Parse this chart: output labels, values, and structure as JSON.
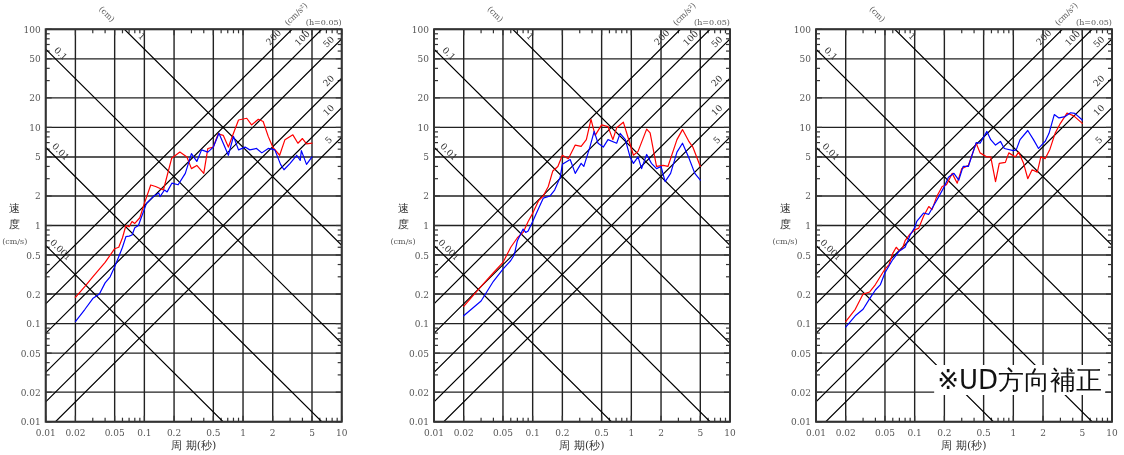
{
  "chart_data": [
    {
      "type": "line",
      "xlabel": "周 期(秒)",
      "ylabel": "速度(cm/s)",
      "log": "xy",
      "grid": true,
      "xlim": [
        0.01,
        10
      ],
      "ylim": [
        0.01,
        100
      ],
      "xticks": [
        0.01,
        0.02,
        {
          "value": 0.03,
          "label": null
        },
        {
          "value": 0.04,
          "label": null
        },
        0.05,
        {
          "value": 0.06,
          "label": null
        },
        {
          "value": 0.07,
          "label": null
        },
        {
          "value": 0.08,
          "label": null
        },
        {
          "value": 0.09,
          "label": null
        },
        0.1,
        0.2,
        {
          "value": 0.3,
          "label": null
        },
        {
          "value": 0.4,
          "label": null
        },
        0.5,
        {
          "value": 0.6,
          "label": null
        },
        {
          "value": 0.7,
          "label": null
        },
        {
          "value": 0.8,
          "label": null
        },
        {
          "value": 0.9,
          "label": null
        },
        1,
        2,
        {
          "value": 3,
          "label": null
        },
        {
          "value": 4,
          "label": null
        },
        5,
        {
          "value": 6,
          "label": null
        },
        {
          "value": 7,
          "label": null
        },
        {
          "value": 8,
          "label": null
        },
        {
          "value": 9,
          "label": null
        },
        10
      ],
      "yticks": [
        0.01,
        0.02,
        {
          "value": 0.03,
          "label": null
        },
        {
          "value": 0.04,
          "label": null
        },
        0.05,
        {
          "value": 0.06,
          "label": null
        },
        {
          "value": 0.07,
          "label": null
        },
        {
          "value": 0.08,
          "label": null
        },
        {
          "value": 0.09,
          "label": null
        },
        0.1,
        0.2,
        {
          "value": 0.3,
          "label": null
        },
        {
          "value": 0.4,
          "label": null
        },
        0.5,
        {
          "value": 0.6,
          "label": null
        },
        {
          "value": 0.7,
          "label": null
        },
        {
          "value": 0.8,
          "label": null
        },
        {
          "value": 0.9,
          "label": null
        },
        1,
        2,
        {
          "value": 3,
          "label": null
        },
        {
          "value": 4,
          "label": null
        },
        5,
        {
          "value": 6,
          "label": null
        },
        {
          "value": 7,
          "label": null
        },
        {
          "value": 8,
          "label": null
        },
        {
          "value": 9,
          "label": null
        },
        10,
        20,
        {
          "value": 30,
          "label": null
        },
        {
          "value": 40,
          "label": null
        },
        50,
        {
          "value": 60,
          "label": null
        },
        {
          "value": 70,
          "label": null
        },
        {
          "value": 80,
          "label": null
        },
        {
          "value": 90,
          "label": null
        },
        100
      ],
      "series": [
        {
          "color": "#000000",
          "x": [
            0.01,
            0.628
          ],
          "values": [
            0.628,
            0.01
          ]
        },
        {
          "color": "#000000",
          "x": [
            0.01,
            6.28
          ],
          "values": [
            6.28,
            0.01
          ]
        },
        {
          "color": "#000000",
          "x": [
            0.01,
            10
          ],
          "values": [
            62.8,
            0.0628
          ]
        },
        {
          "color": "#000000",
          "x": [
            0.0628,
            10
          ],
          "values": [
            100,
            0.628
          ]
        },
        {
          "color": "#000000",
          "x": [
            0.01257,
            10
          ],
          "values": [
            0.01,
            7.96
          ]
        },
        {
          "color": "#000000",
          "x": [
            0.01,
            10
          ],
          "values": [
            0.0159,
            15.9
          ]
        },
        {
          "color": "#000000",
          "x": [
            0.01,
            10
          ],
          "values": [
            0.0318,
            31.8
          ]
        },
        {
          "color": "#000000",
          "x": [
            0.01,
            10
          ],
          "values": [
            0.0796,
            79.6
          ]
        },
        {
          "color": "#000000",
          "x": [
            0.01,
            6.28
          ],
          "values": [
            0.159,
            100
          ]
        },
        {
          "color": "#000000",
          "x": [
            0.01,
            3.14
          ],
          "values": [
            0.318,
            100
          ]
        },
        {
          "color": "#ff0000",
          "x": [
            0.02,
            0.025,
            0.03,
            0.04,
            0.05,
            0.055,
            0.06,
            0.065,
            0.07,
            0.075,
            0.08,
            0.09,
            0.1,
            0.116,
            0.13,
            0.156,
            0.189,
            0.229,
            0.27,
            0.3,
            0.34,
            0.4,
            0.44,
            0.5,
            0.56,
            0.63,
            0.71,
            0.8,
            0.9,
            1.09,
            1.22,
            1.43,
            1.6,
            1.8,
            2.0,
            2.35,
            2.66,
            3.2,
            3.6,
            4.0,
            4.4,
            5.0
          ],
          "values": [
            0.185,
            0.24,
            0.3,
            0.42,
            0.58,
            0.6,
            0.75,
            1.0,
            0.97,
            1.1,
            1.05,
            1.2,
            1.68,
            2.59,
            2.5,
            2.3,
            4.84,
            5.6,
            5.0,
            3.8,
            4.1,
            3.4,
            6.1,
            6.3,
            8.6,
            8.3,
            6.3,
            8.7,
            11.9,
            12.4,
            10.6,
            12.1,
            11.5,
            8.1,
            6.3,
            5.2,
            7.5,
            8.4,
            6.9,
            7.7,
            6.8,
            6.9
          ]
        },
        {
          "color": "#0000ff",
          "x": [
            0.02,
            0.025,
            0.03,
            0.035,
            0.04,
            0.045,
            0.05,
            0.055,
            0.06,
            0.065,
            0.07,
            0.075,
            0.08,
            0.087,
            0.105,
            0.123,
            0.14,
            0.144,
            0.16,
            0.17,
            0.19,
            0.22,
            0.26,
            0.3,
            0.34,
            0.38,
            0.44,
            0.5,
            0.57,
            0.63,
            0.71,
            0.8,
            0.9,
            1.05,
            1.17,
            1.37,
            1.55,
            1.8,
            2.1,
            2.4,
            2.6,
            3.0,
            3.5,
            3.8,
            3.9,
            4.4,
            5.0
          ],
          "values": [
            0.105,
            0.14,
            0.18,
            0.2,
            0.26,
            0.3,
            0.38,
            0.48,
            0.6,
            0.77,
            0.78,
            0.8,
            0.95,
            1.0,
            1.68,
            1.97,
            2.15,
            1.97,
            2.3,
            2.2,
            2.7,
            2.6,
            3.4,
            5.4,
            4.5,
            5.9,
            5.6,
            6.3,
            8.7,
            6.9,
            5.2,
            8.1,
            5.9,
            6.3,
            5.9,
            6.1,
            5.5,
            6.1,
            5.9,
            4.2,
            3.7,
            4.3,
            5.2,
            4.6,
            5.8,
            4.2,
            5.0
          ]
        }
      ],
      "annotations": [
        "(cm)",
        "(cm/s²)",
        "(h=0.05)",
        {
          "text": "0.1",
          "x": 0.012,
          "y": 52.4
        },
        {
          "text": "0.01",
          "x": 0.012,
          "y": 5.24
        },
        {
          "text": "0.001",
          "x": 0.012,
          "y": 0.524
        },
        {
          "text": "1",
          "x": 0.08,
          "y": 78.5
        },
        {
          "text": "200",
          "x": 2.3,
          "y": 73.2
        },
        {
          "text": "100",
          "x": 4.5,
          "y": 71.6
        },
        {
          "text": "50",
          "x": 8.3,
          "y": 66.1
        },
        {
          "text": "20",
          "x": 8.3,
          "y": 26.4
        },
        {
          "text": "10",
          "x": 8.3,
          "y": 13.2
        },
        {
          "text": "5",
          "x": 8.3,
          "y": 6.6
        }
      ]
    },
    {
      "type": "line",
      "xlabel": "周 期(秒)",
      "ylabel": "速度(cm/s)",
      "log": "xy",
      "grid": true,
      "xlim": [
        0.01,
        10
      ],
      "ylim": [
        0.01,
        100
      ],
      "xticks": [
        0.01,
        0.02,
        {
          "value": 0.03,
          "label": null
        },
        {
          "value": 0.04,
          "label": null
        },
        0.05,
        {
          "value": 0.06,
          "label": null
        },
        {
          "value": 0.07,
          "label": null
        },
        {
          "value": 0.08,
          "label": null
        },
        {
          "value": 0.09,
          "label": null
        },
        0.1,
        0.2,
        {
          "value": 0.3,
          "label": null
        },
        {
          "value": 0.4,
          "label": null
        },
        0.5,
        {
          "value": 0.6,
          "label": null
        },
        {
          "value": 0.7,
          "label": null
        },
        {
          "value": 0.8,
          "label": null
        },
        {
          "value": 0.9,
          "label": null
        },
        1,
        2,
        {
          "value": 3,
          "label": null
        },
        {
          "value": 4,
          "label": null
        },
        5,
        {
          "value": 6,
          "label": null
        },
        {
          "value": 7,
          "label": null
        },
        {
          "value": 8,
          "label": null
        },
        {
          "value": 9,
          "label": null
        },
        10
      ],
      "yticks": [
        0.01,
        0.02,
        {
          "value": 0.03,
          "label": null
        },
        {
          "value": 0.04,
          "label": null
        },
        0.05,
        {
          "value": 0.06,
          "label": null
        },
        {
          "value": 0.07,
          "label": null
        },
        {
          "value": 0.08,
          "label": null
        },
        {
          "value": 0.09,
          "label": null
        },
        0.1,
        0.2,
        {
          "value": 0.3,
          "label": null
        },
        {
          "value": 0.4,
          "label": null
        },
        0.5,
        {
          "value": 0.6,
          "label": null
        },
        {
          "value": 0.7,
          "label": null
        },
        {
          "value": 0.8,
          "label": null
        },
        {
          "value": 0.9,
          "label": null
        },
        1,
        2,
        {
          "value": 3,
          "label": null
        },
        {
          "value": 4,
          "label": null
        },
        5,
        {
          "value": 6,
          "label": null
        },
        {
          "value": 7,
          "label": null
        },
        {
          "value": 8,
          "label": null
        },
        {
          "value": 9,
          "label": null
        },
        10,
        20,
        {
          "value": 30,
          "label": null
        },
        {
          "value": 40,
          "label": null
        },
        50,
        {
          "value": 60,
          "label": null
        },
        {
          "value": 70,
          "label": null
        },
        {
          "value": 80,
          "label": null
        },
        {
          "value": 90,
          "label": null
        },
        100
      ],
      "series": [
        {
          "color": "#000000",
          "x": [
            0.01,
            0.628
          ],
          "values": [
            0.628,
            0.01
          ]
        },
        {
          "color": "#000000",
          "x": [
            0.01,
            6.28
          ],
          "values": [
            6.28,
            0.01
          ]
        },
        {
          "color": "#000000",
          "x": [
            0.01,
            10
          ],
          "values": [
            62.8,
            0.0628
          ]
        },
        {
          "color": "#000000",
          "x": [
            0.0628,
            10
          ],
          "values": [
            100,
            0.628
          ]
        },
        {
          "color": "#000000",
          "x": [
            0.01257,
            10
          ],
          "values": [
            0.01,
            7.96
          ]
        },
        {
          "color": "#000000",
          "x": [
            0.01,
            10
          ],
          "values": [
            0.0159,
            15.9
          ]
        },
        {
          "color": "#000000",
          "x": [
            0.01,
            10
          ],
          "values": [
            0.0318,
            31.8
          ]
        },
        {
          "color": "#000000",
          "x": [
            0.01,
            10
          ],
          "values": [
            0.0796,
            79.6
          ]
        },
        {
          "color": "#000000",
          "x": [
            0.01,
            6.28
          ],
          "values": [
            0.159,
            100
          ]
        },
        {
          "color": "#000000",
          "x": [
            0.01,
            3.14
          ],
          "values": [
            0.318,
            100
          ]
        },
        {
          "color": "#ff0000",
          "x": [
            0.02,
            0.03,
            0.04,
            0.05,
            0.06,
            0.07,
            0.08,
            0.09,
            0.1,
            0.115,
            0.128,
            0.144,
            0.16,
            0.18,
            0.2,
            0.23,
            0.27,
            0.31,
            0.35,
            0.39,
            0.43,
            0.5,
            0.58,
            0.65,
            0.71,
            0.83,
            0.93,
            1.05,
            1.17,
            1.43,
            1.55,
            1.8,
            2.1,
            2.35,
            2.9,
            3.3,
            3.8,
            4.2,
            5.0
          ],
          "values": [
            0.15,
            0.24,
            0.33,
            0.42,
            0.6,
            0.75,
            0.85,
            1.1,
            1.33,
            1.8,
            2.0,
            2.5,
            3.6,
            4.0,
            5.2,
            4.8,
            6.6,
            6.4,
            7.5,
            12.1,
            8.3,
            10.6,
            10.2,
            7.5,
            9.9,
            11.3,
            7.8,
            5.2,
            5.7,
            9.6,
            8.8,
            4.0,
            4.1,
            4.0,
            7.5,
            9.5,
            7.3,
            6.3,
            4.0
          ]
        },
        {
          "color": "#0000ff",
          "x": [
            0.02,
            0.03,
            0.04,
            0.05,
            0.06,
            0.065,
            0.07,
            0.08,
            0.085,
            0.09,
            0.1,
            0.115,
            0.128,
            0.15,
            0.167,
            0.19,
            0.2,
            0.24,
            0.27,
            0.31,
            0.33,
            0.38,
            0.42,
            0.46,
            0.52,
            0.58,
            0.71,
            0.77,
            0.87,
            0.97,
            1.05,
            1.17,
            1.27,
            1.43,
            1.6,
            1.8,
            2.0,
            2.2,
            2.5,
            2.9,
            3.3,
            3.8,
            4.4,
            5.0
          ],
          "values": [
            0.12,
            0.17,
            0.27,
            0.36,
            0.44,
            0.5,
            0.7,
            0.92,
            0.85,
            0.88,
            1.1,
            1.5,
            1.9,
            2.0,
            2.3,
            3.1,
            4.2,
            4.7,
            3.4,
            4.3,
            4.0,
            6.3,
            9.1,
            6.9,
            6.3,
            7.5,
            6.9,
            8.7,
            7.5,
            5.0,
            4.3,
            5.0,
            3.8,
            5.3,
            4.3,
            3.8,
            4.0,
            2.8,
            3.4,
            5.6,
            6.9,
            5.0,
            3.4,
            2.9
          ]
        }
      ],
      "annotations": [
        "(cm)",
        "(cm/s²)",
        "(h=0.05)",
        {
          "text": "0.1",
          "x": 0.012,
          "y": 52.4
        },
        {
          "text": "0.01",
          "x": 0.012,
          "y": 5.24
        },
        {
          "text": "0.001",
          "x": 0.012,
          "y": 0.524
        },
        {
          "text": "1",
          "x": 0.08,
          "y": 78.5
        },
        {
          "text": "200",
          "x": 2.3,
          "y": 73.2
        },
        {
          "text": "100",
          "x": 4.5,
          "y": 71.6
        },
        {
          "text": "50",
          "x": 8.3,
          "y": 66.1
        },
        {
          "text": "20",
          "x": 8.3,
          "y": 26.4
        },
        {
          "text": "10",
          "x": 8.3,
          "y": 13.2
        },
        {
          "text": "5",
          "x": 8.3,
          "y": 6.6
        }
      ]
    },
    {
      "type": "line",
      "xlabel": "周 期(秒)",
      "ylabel": "速度(cm/s)",
      "log": "xy",
      "grid": true,
      "xlim": [
        0.01,
        10
      ],
      "ylim": [
        0.01,
        100
      ],
      "xticks": [
        0.01,
        0.02,
        {
          "value": 0.03,
          "label": null
        },
        {
          "value": 0.04,
          "label": null
        },
        0.05,
        {
          "value": 0.06,
          "label": null
        },
        {
          "value": 0.07,
          "label": null
        },
        {
          "value": 0.08,
          "label": null
        },
        {
          "value": 0.09,
          "label": null
        },
        0.1,
        0.2,
        {
          "value": 0.3,
          "label": null
        },
        {
          "value": 0.4,
          "label": null
        },
        0.5,
        {
          "value": 0.6,
          "label": null
        },
        {
          "value": 0.7,
          "label": null
        },
        {
          "value": 0.8,
          "label": null
        },
        {
          "value": 0.9,
          "label": null
        },
        1,
        2,
        {
          "value": 3,
          "label": null
        },
        {
          "value": 4,
          "label": null
        },
        5,
        {
          "value": 6,
          "label": null
        },
        {
          "value": 7,
          "label": null
        },
        {
          "value": 8,
          "label": null
        },
        {
          "value": 9,
          "label": null
        },
        10
      ],
      "yticks": [
        0.01,
        0.02,
        {
          "value": 0.03,
          "label": null
        },
        {
          "value": 0.04,
          "label": null
        },
        0.05,
        {
          "value": 0.06,
          "label": null
        },
        {
          "value": 0.07,
          "label": null
        },
        {
          "value": 0.08,
          "label": null
        },
        {
          "value": 0.09,
          "label": null
        },
        0.1,
        0.2,
        {
          "value": 0.3,
          "label": null
        },
        {
          "value": 0.4,
          "label": null
        },
        0.5,
        {
          "value": 0.6,
          "label": null
        },
        {
          "value": 0.7,
          "label": null
        },
        {
          "value": 0.8,
          "label": null
        },
        {
          "value": 0.9,
          "label": null
        },
        1,
        2,
        {
          "value": 3,
          "label": null
        },
        {
          "value": 4,
          "label": null
        },
        5,
        {
          "value": 6,
          "label": null
        },
        {
          "value": 7,
          "label": null
        },
        {
          "value": 8,
          "label": null
        },
        {
          "value": 9,
          "label": null
        },
        10,
        20,
        {
          "value": 30,
          "label": null
        },
        {
          "value": 40,
          "label": null
        },
        50,
        {
          "value": 60,
          "label": null
        },
        {
          "value": 70,
          "label": null
        },
        {
          "value": 80,
          "label": null
        },
        {
          "value": 90,
          "label": null
        },
        100
      ],
      "series": [
        {
          "color": "#000000",
          "x": [
            0.01,
            0.628
          ],
          "values": [
            0.628,
            0.01
          ]
        },
        {
          "color": "#000000",
          "x": [
            0.01,
            6.28
          ],
          "values": [
            6.28,
            0.01
          ]
        },
        {
          "color": "#000000",
          "x": [
            0.01,
            10
          ],
          "values": [
            62.8,
            0.0628
          ]
        },
        {
          "color": "#000000",
          "x": [
            0.0628,
            10
          ],
          "values": [
            100,
            0.628
          ]
        },
        {
          "color": "#000000",
          "x": [
            0.01257,
            10
          ],
          "values": [
            0.01,
            7.96
          ]
        },
        {
          "color": "#000000",
          "x": [
            0.01,
            10
          ],
          "values": [
            0.0159,
            15.9
          ]
        },
        {
          "color": "#000000",
          "x": [
            0.01,
            10
          ],
          "values": [
            0.0318,
            31.8
          ]
        },
        {
          "color": "#000000",
          "x": [
            0.01,
            10
          ],
          "values": [
            0.0796,
            79.6
          ]
        },
        {
          "color": "#000000",
          "x": [
            0.01,
            6.28
          ],
          "values": [
            0.159,
            100
          ]
        },
        {
          "color": "#000000",
          "x": [
            0.01,
            3.14
          ],
          "values": [
            0.318,
            100
          ]
        },
        {
          "color": "#ff0000",
          "x": [
            0.02,
            0.025,
            0.03,
            0.035,
            0.04,
            0.05,
            0.055,
            0.06,
            0.065,
            0.07,
            0.075,
            0.08,
            0.09,
            0.1,
            0.11,
            0.123,
            0.139,
            0.15,
            0.167,
            0.19,
            0.21,
            0.24,
            0.27,
            0.3,
            0.35,
            0.42,
            0.46,
            0.54,
            0.59,
            0.66,
            0.72,
            0.83,
            0.9,
            1.05,
            1.13,
            1.27,
            1.4,
            1.55,
            1.75,
            1.9,
            2.1,
            2.35,
            2.65,
            3.0,
            3.5,
            4.1,
            5.0
          ],
          "values": [
            0.105,
            0.14,
            0.2,
            0.21,
            0.25,
            0.36,
            0.4,
            0.52,
            0.6,
            0.55,
            0.58,
            0.7,
            0.82,
            0.9,
            0.94,
            1.24,
            1.56,
            1.45,
            1.96,
            2.5,
            2.6,
            3.4,
            2.7,
            3.8,
            4.1,
            6.9,
            5.5,
            5.0,
            5.0,
            2.8,
            4.3,
            4.4,
            5.5,
            5.0,
            5.6,
            4.3,
            3.0,
            3.7,
            3.5,
            5.0,
            4.8,
            6.0,
            8.7,
            11.0,
            14.0,
            13.1,
            11.0
          ]
        },
        {
          "color": "#0000ff",
          "x": [
            0.02,
            0.025,
            0.03,
            0.035,
            0.04,
            0.045,
            0.05,
            0.06,
            0.07,
            0.08,
            0.09,
            0.1,
            0.105,
            0.123,
            0.139,
            0.156,
            0.175,
            0.2,
            0.22,
            0.25,
            0.28,
            0.31,
            0.35,
            0.42,
            0.46,
            0.54,
            0.59,
            0.66,
            0.74,
            0.81,
            1.0,
            1.07,
            1.17,
            1.4,
            1.6,
            1.8,
            2.1,
            2.3,
            2.6,
            2.9,
            3.35,
            3.8,
            4.2,
            5.0
          ],
          "values": [
            0.092,
            0.12,
            0.14,
            0.18,
            0.22,
            0.25,
            0.33,
            0.45,
            0.55,
            0.6,
            0.8,
            0.95,
            1.1,
            1.34,
            1.3,
            1.6,
            1.96,
            2.5,
            3.1,
            3.4,
            2.9,
            4.0,
            4.0,
            7.0,
            6.9,
            9.1,
            7.5,
            6.6,
            7.2,
            6.1,
            5.8,
            5.9,
            7.5,
            9.3,
            7.5,
            6.1,
            7.2,
            8.7,
            13.5,
            12.5,
            12.9,
            14.1,
            13.9,
            11.9
          ]
        }
      ],
      "annotations": [
        "(cm)",
        "(cm/s²)",
        "(h=0.05)",
        "※UD方向補正",
        {
          "text": "0.1",
          "x": 0.012,
          "y": 52.4
        },
        {
          "text": "0.01",
          "x": 0.012,
          "y": 5.24
        },
        {
          "text": "0.001",
          "x": 0.012,
          "y": 0.524
        },
        {
          "text": "1",
          "x": 0.08,
          "y": 78.5
        },
        {
          "text": "200",
          "x": 2.3,
          "y": 73.2
        },
        {
          "text": "100",
          "x": 4.5,
          "y": 71.6
        },
        {
          "text": "50",
          "x": 8.3,
          "y": 66.1
        },
        {
          "text": "20",
          "x": 8.3,
          "y": 26.4
        },
        {
          "text": "10",
          "x": 8.3,
          "y": 13.2
        },
        {
          "text": "5",
          "x": 8.3,
          "y": 6.6
        }
      ]
    }
  ]
}
